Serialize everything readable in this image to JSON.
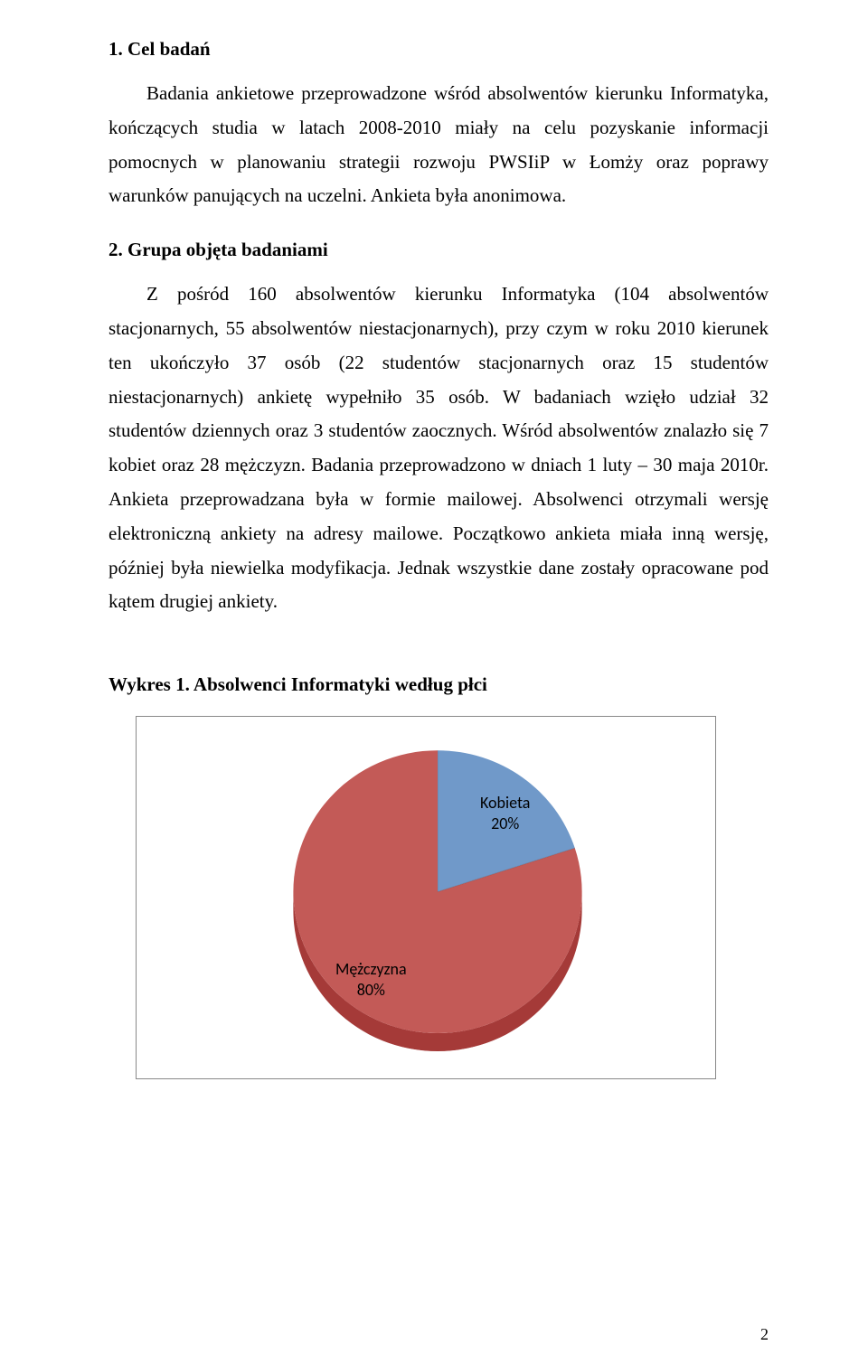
{
  "section1": {
    "heading": "1. Cel badań",
    "body": "Badania ankietowe przeprowadzone wśród absolwentów kierunku Informatyka, kończących studia w latach 2008-2010 miały na celu pozyskanie informacji pomocnych w planowaniu strategii rozwoju PWSIiP w Łomży oraz poprawy warunków panujących na uczelni. Ankieta była anonimowa."
  },
  "section2": {
    "heading": "2. Grupa objęta badaniami",
    "body": "Z pośród 160 absolwentów kierunku Informatyka (104 absolwentów stacjonarnych, 55 absolwentów niestacjonarnych), przy czym w roku 2010 kierunek ten ukończyło 37 osób (22 studentów stacjonarnych oraz 15 studentów niestacjonarnych) ankietę wypełniło 35 osób. W badaniach wzięło udział 32 studentów dziennych oraz 3 studentów zaocznych. Wśród absolwentów znalazło się 7 kobiet oraz 28 mężczyzn. Badania przeprowadzono w dniach 1 luty – 30 maja 2010r. Ankieta przeprowadzana była w formie mailowej. Absolwenci otrzymali wersję elektroniczną ankiety na adresy mailowe. Początkowo ankieta miała inną wersję, później była niewielka modyfikacja. Jednak wszystkie dane zostały opracowane pod kątem drugiej ankiety."
  },
  "chart": {
    "caption": "Wykres 1. Absolwenci Informatyki według płci",
    "type": "pie",
    "background": "#ffffff",
    "border_color": "#888888",
    "slices": [
      {
        "label_line1": "Kobieta",
        "label_line2": "20%",
        "value": 20,
        "color": "#4a7ebb",
        "side_light": "#6b98cf",
        "side_dark": "#3a6aa5"
      },
      {
        "label_line1": "Mężczyzna",
        "label_line2": "80%",
        "value": 80,
        "color": "#be4b48",
        "side_light": "#cf6b68",
        "side_dark": "#a53a38"
      }
    ],
    "label_font_family": "Calibri",
    "label_fontsize": 18,
    "label_color": "#000000",
    "start_angle_deg": -90,
    "highlight_opacity": 0.35
  },
  "pageNumber": "2"
}
